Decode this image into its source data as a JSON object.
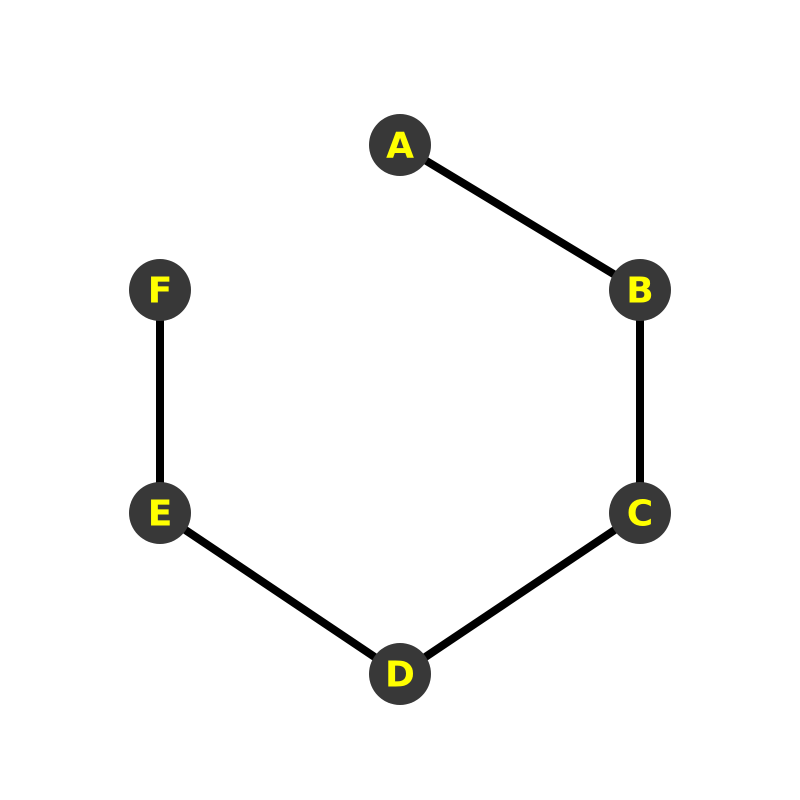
{
  "diagram": {
    "type": "undirected-graph",
    "layout": "hexagon",
    "nodes": [
      {
        "id": "A",
        "label": "A"
      },
      {
        "id": "B",
        "label": "B"
      },
      {
        "id": "C",
        "label": "C"
      },
      {
        "id": "D",
        "label": "D"
      },
      {
        "id": "E",
        "label": "E"
      },
      {
        "id": "F",
        "label": "F"
      }
    ],
    "edges": [
      {
        "from": "A",
        "to": "B"
      },
      {
        "from": "B",
        "to": "C"
      },
      {
        "from": "C",
        "to": "D"
      },
      {
        "from": "D",
        "to": "E"
      },
      {
        "from": "E",
        "to": "F"
      }
    ]
  },
  "colors": {
    "background": "#ffffff",
    "edge": "#000000",
    "node_fill": "#383838",
    "node_label": "#ffff00"
  }
}
